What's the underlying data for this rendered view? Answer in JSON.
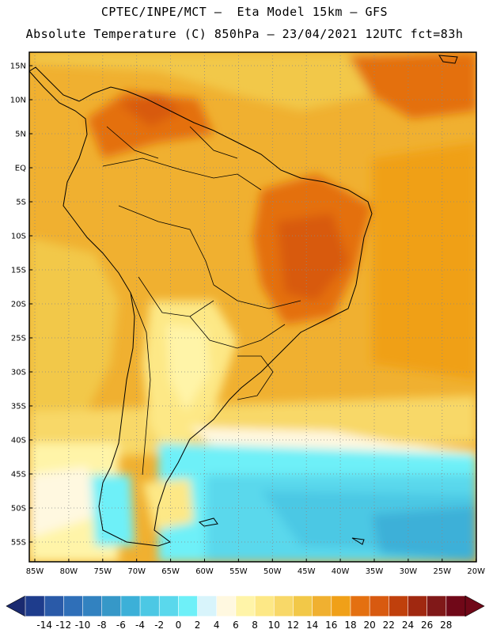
{
  "header": {
    "title_line1": "CPTEC/INPE/MCT –  Eta Model 15km – GFS",
    "title_line2": "Absolute Temperature (C) 850hPa – 23/04/2021 12UTC fct=83h"
  },
  "map": {
    "lat_labels": [
      "15N",
      "10N",
      "5N",
      "EQ",
      "5S",
      "10S",
      "15S",
      "20S",
      "25S",
      "30S",
      "35S",
      "40S",
      "45S",
      "50S",
      "55S"
    ],
    "lon_labels": [
      "85W",
      "80W",
      "75W",
      "70W",
      "65W",
      "60W",
      "55W",
      "50W",
      "45W",
      "40W",
      "35W",
      "30W",
      "25W",
      "20W"
    ],
    "grid": "dotted"
  },
  "colorbar": {
    "ticks": [
      "-14",
      "-12",
      "-10",
      "-8",
      "-6",
      "-4",
      "-2",
      "0",
      "2",
      "4",
      "6",
      "8",
      "10",
      "12",
      "14",
      "16",
      "18",
      "20",
      "22",
      "24",
      "26",
      "28"
    ],
    "colors": [
      "#1e3c8c",
      "#2a5aa8",
      "#2f6fb8",
      "#3282c0",
      "#3698c8",
      "#3cb0d8",
      "#4cc8e4",
      "#5ad8ec",
      "#6ef0f8",
      "#d8f4fb",
      "#fff8e0",
      "#fff4a8",
      "#fde886",
      "#f8d868",
      "#f2c848",
      "#f0b030",
      "#f0a018",
      "#e47010",
      "#d85a10",
      "#c0400c",
      "#a02810",
      "#801818",
      "#700818"
    ],
    "low_arrow_color": "#1a2a70",
    "high_arrow_color": "#700818"
  }
}
